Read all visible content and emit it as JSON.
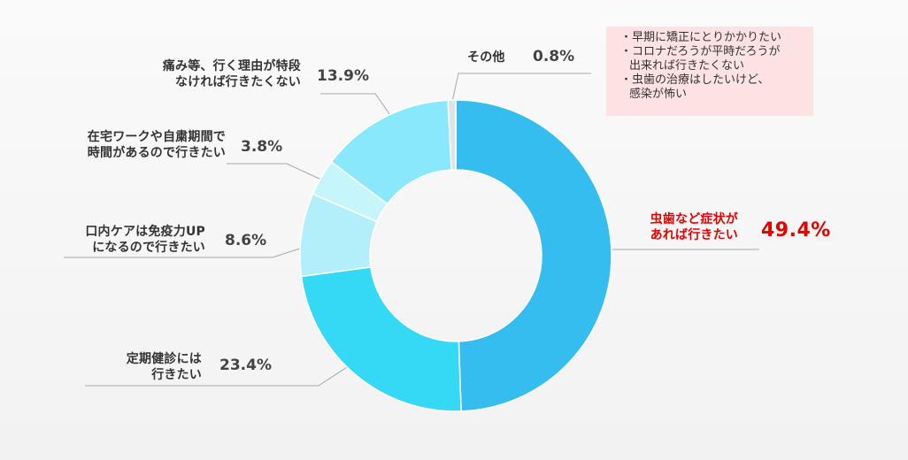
{
  "chart_data": {
    "type": "donut",
    "categories": [
      "虫歯など症状が\nあれば行きたい",
      "定期健診には\n行きたい",
      "口内ケアは免疫力UP\nになるので行きたい",
      "在宅ワークや自粛期間で\n時間があるので行きたい",
      "痛み等、行く理由が特段\nなければ行きたくない",
      "その他"
    ],
    "values": [
      49.4,
      23.4,
      8.6,
      3.8,
      13.9,
      0.8
    ],
    "value_labels": [
      "49.4%",
      "23.4%",
      "8.6%",
      "3.8%",
      "13.9%",
      "0.8%"
    ],
    "colors": [
      "#36bdef",
      "#35d9f6",
      "#b2effb",
      "#c7f5fc",
      "#89e8fb",
      "#dde3e8"
    ],
    "highlight_color": "#e60000",
    "note": [
      "・早期に矯正にとりかかりたい",
      "・コロナだろうが平時だろうが\n出来れば行きたくない",
      "・虫歯の治療はしたいけど、\n感染が怖い"
    ]
  }
}
